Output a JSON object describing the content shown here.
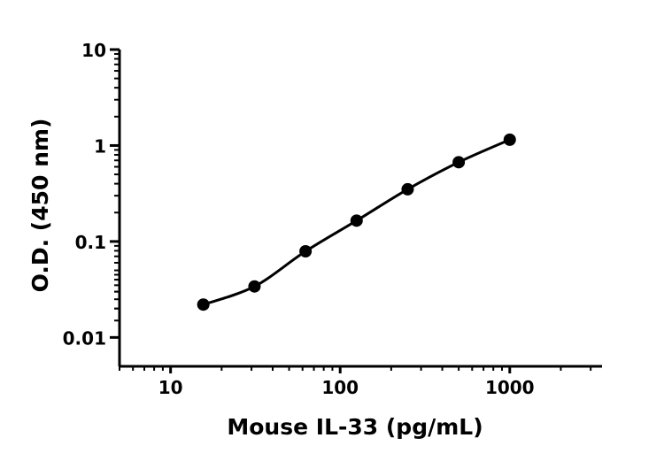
{
  "chart_data": {
    "type": "scatter",
    "title": "",
    "xlabel": "Mouse IL-33 (pg/mL)",
    "ylabel": "O.D. (450 nm)",
    "xscale": "log",
    "yscale": "log",
    "xlim": [
      5,
      3500
    ],
    "ylim": [
      0.005,
      10
    ],
    "x_tick_labels": [
      "10",
      "100",
      "1000"
    ],
    "y_tick_labels": [
      "0.01",
      "0.1",
      "1",
      "10"
    ],
    "grid": false,
    "legend": "none",
    "series": [
      {
        "x": [
          15.6,
          31.25,
          62.5,
          125,
          250,
          500,
          1000
        ],
        "y": [
          0.022,
          0.034,
          0.079,
          0.165,
          0.35,
          0.67,
          1.15
        ]
      }
    ],
    "colors": {
      "points": "#000000",
      "curve": "#000000",
      "axes": "#000000"
    }
  }
}
